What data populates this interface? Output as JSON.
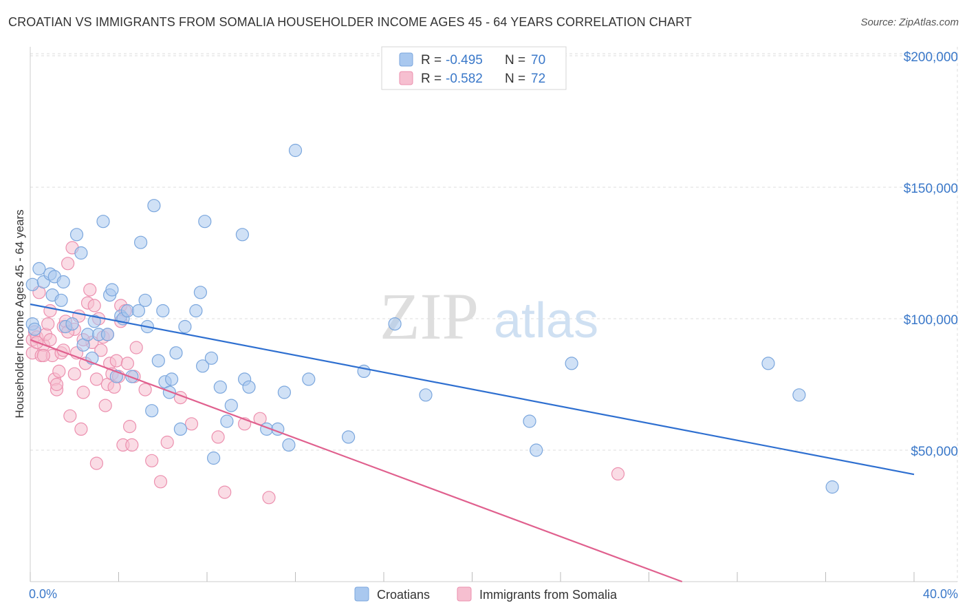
{
  "header": {
    "title": "CROATIAN VS IMMIGRANTS FROM SOMALIA HOUSEHOLDER INCOME AGES 45 - 64 YEARS CORRELATION CHART",
    "source": "Source: ZipAtlas.com"
  },
  "watermark": {
    "zip": "ZIP",
    "atlas": "atlas"
  },
  "legend": {
    "r_label": "R =",
    "n_label": "N =",
    "series": [
      {
        "name": "Croatians",
        "r": "-0.495",
        "n": "70"
      },
      {
        "name": "Immigrants from Somalia",
        "r": "-0.582",
        "n": "72"
      }
    ]
  },
  "colors": {
    "croatians_fill": "#a9c8ef",
    "croatians_stroke": "#7aa6dd",
    "croatians_line": "#2e6fd0",
    "somalia_fill": "#f6bfd0",
    "somalia_stroke": "#ec8fae",
    "somalia_line": "#e0608e",
    "tick_label": "#3a78c9",
    "grid": "#dddddd"
  },
  "chart_data": {
    "type": "scatter",
    "title": "CROATIAN VS IMMIGRANTS FROM SOMALIA HOUSEHOLDER INCOME AGES 45 - 64 YEARS CORRELATION CHART",
    "xlabel": "",
    "ylabel": "Householder Income Ages 45 - 64 years",
    "xlim": [
      0,
      40
    ],
    "ylim": [
      0,
      205000
    ],
    "x_tick_labels": [
      "0.0%",
      "40.0%"
    ],
    "y_ticks": [
      50000,
      100000,
      150000,
      200000
    ],
    "y_tick_labels": [
      "$50,000",
      "$100,000",
      "$150,000",
      "$200,000"
    ],
    "grid": true,
    "legend_position": "top-center",
    "series": [
      {
        "name": "Croatians",
        "trendline": {
          "x": [
            0,
            40
          ],
          "y": [
            105500,
            40800
          ]
        },
        "points": [
          [
            0.1,
            113000
          ],
          [
            0.1,
            98000
          ],
          [
            0.4,
            119000
          ],
          [
            0.6,
            114000
          ],
          [
            0.9,
            117000
          ],
          [
            1.0,
            109000
          ],
          [
            1.1,
            116000
          ],
          [
            1.4,
            107000
          ],
          [
            1.5,
            114000
          ],
          [
            1.6,
            97000
          ],
          [
            1.9,
            98000
          ],
          [
            2.1,
            132000
          ],
          [
            2.3,
            125000
          ],
          [
            2.4,
            90000
          ],
          [
            2.6,
            94000
          ],
          [
            2.8,
            85000
          ],
          [
            2.9,
            99000
          ],
          [
            3.1,
            94000
          ],
          [
            3.3,
            137000
          ],
          [
            3.5,
            94000
          ],
          [
            3.6,
            109000
          ],
          [
            3.7,
            111000
          ],
          [
            3.9,
            78000
          ],
          [
            4.1,
            101000
          ],
          [
            4.2,
            100000
          ],
          [
            4.4,
            103000
          ],
          [
            4.6,
            78000
          ],
          [
            4.9,
            103000
          ],
          [
            5.0,
            129000
          ],
          [
            5.2,
            107000
          ],
          [
            5.3,
            97000
          ],
          [
            5.5,
            65000
          ],
          [
            5.6,
            143000
          ],
          [
            5.8,
            84000
          ],
          [
            6.0,
            103000
          ],
          [
            6.1,
            76000
          ],
          [
            6.3,
            72000
          ],
          [
            6.4,
            77000
          ],
          [
            6.6,
            87000
          ],
          [
            6.8,
            58000
          ],
          [
            7.0,
            97000
          ],
          [
            7.5,
            103000
          ],
          [
            7.7,
            110000
          ],
          [
            7.8,
            82000
          ],
          [
            7.9,
            137000
          ],
          [
            8.2,
            85000
          ],
          [
            8.3,
            47000
          ],
          [
            8.6,
            74000
          ],
          [
            8.9,
            61000
          ],
          [
            9.1,
            67000
          ],
          [
            9.6,
            132000
          ],
          [
            9.7,
            77000
          ],
          [
            9.9,
            74000
          ],
          [
            10.7,
            58000
          ],
          [
            11.2,
            58000
          ],
          [
            11.5,
            72000
          ],
          [
            11.7,
            52000
          ],
          [
            12.0,
            164000
          ],
          [
            12.6,
            77000
          ],
          [
            14.4,
            55000
          ],
          [
            15.1,
            80000
          ],
          [
            16.5,
            98000
          ],
          [
            17.9,
            71000
          ],
          [
            22.6,
            61000
          ],
          [
            22.9,
            50000
          ],
          [
            24.5,
            83000
          ],
          [
            33.4,
            83000
          ],
          [
            34.8,
            71000
          ],
          [
            36.3,
            36000
          ],
          [
            0.2,
            96000
          ]
        ]
      },
      {
        "name": "Immigrants from Somalia",
        "trendline": {
          "x": [
            0,
            29.5
          ],
          "y": [
            92000,
            0
          ]
        },
        "points": [
          [
            0.1,
            87000
          ],
          [
            0.1,
            92000
          ],
          [
            0.2,
            95000
          ],
          [
            0.3,
            93000
          ],
          [
            0.4,
            110000
          ],
          [
            0.5,
            86000
          ],
          [
            0.6,
            90000
          ],
          [
            0.7,
            94000
          ],
          [
            0.8,
            98000
          ],
          [
            0.9,
            103000
          ],
          [
            1.0,
            86000
          ],
          [
            1.1,
            77000
          ],
          [
            1.2,
            73000
          ],
          [
            1.3,
            80000
          ],
          [
            1.4,
            87000
          ],
          [
            1.5,
            97000
          ],
          [
            1.5,
            88000
          ],
          [
            1.6,
            99000
          ],
          [
            1.7,
            121000
          ],
          [
            1.8,
            63000
          ],
          [
            1.9,
            127000
          ],
          [
            2.0,
            96000
          ],
          [
            2.1,
            87000
          ],
          [
            2.2,
            101000
          ],
          [
            2.3,
            58000
          ],
          [
            2.4,
            72000
          ],
          [
            2.5,
            83000
          ],
          [
            2.6,
            106000
          ],
          [
            2.7,
            111000
          ],
          [
            2.8,
            91000
          ],
          [
            2.9,
            105000
          ],
          [
            3.0,
            77000
          ],
          [
            3.1,
            100000
          ],
          [
            3.2,
            88000
          ],
          [
            3.3,
            93000
          ],
          [
            3.4,
            67000
          ],
          [
            3.5,
            75000
          ],
          [
            3.6,
            83000
          ],
          [
            3.7,
            79000
          ],
          [
            3.8,
            74000
          ],
          [
            3.9,
            84000
          ],
          [
            4.0,
            78000
          ],
          [
            4.1,
            105000
          ],
          [
            4.2,
            52000
          ],
          [
            4.3,
            103000
          ],
          [
            4.4,
            83000
          ],
          [
            4.5,
            59000
          ],
          [
            4.6,
            52000
          ],
          [
            4.7,
            78000
          ],
          [
            4.8,
            89000
          ],
          [
            5.2,
            73000
          ],
          [
            5.5,
            46000
          ],
          [
            5.9,
            38000
          ],
          [
            6.2,
            53000
          ],
          [
            6.8,
            70000
          ],
          [
            7.3,
            60000
          ],
          [
            8.5,
            55000
          ],
          [
            8.8,
            34000
          ],
          [
            9.7,
            60000
          ],
          [
            10.4,
            62000
          ],
          [
            10.8,
            32000
          ],
          [
            26.6,
            41000
          ],
          [
            0.3,
            91000
          ],
          [
            0.6,
            86000
          ],
          [
            1.2,
            75000
          ],
          [
            2.0,
            79000
          ],
          [
            3.0,
            45000
          ],
          [
            3.5,
            94000
          ],
          [
            4.1,
            99000
          ],
          [
            0.9,
            92000
          ],
          [
            2.4,
            92000
          ],
          [
            1.7,
            95000
          ]
        ]
      }
    ]
  }
}
